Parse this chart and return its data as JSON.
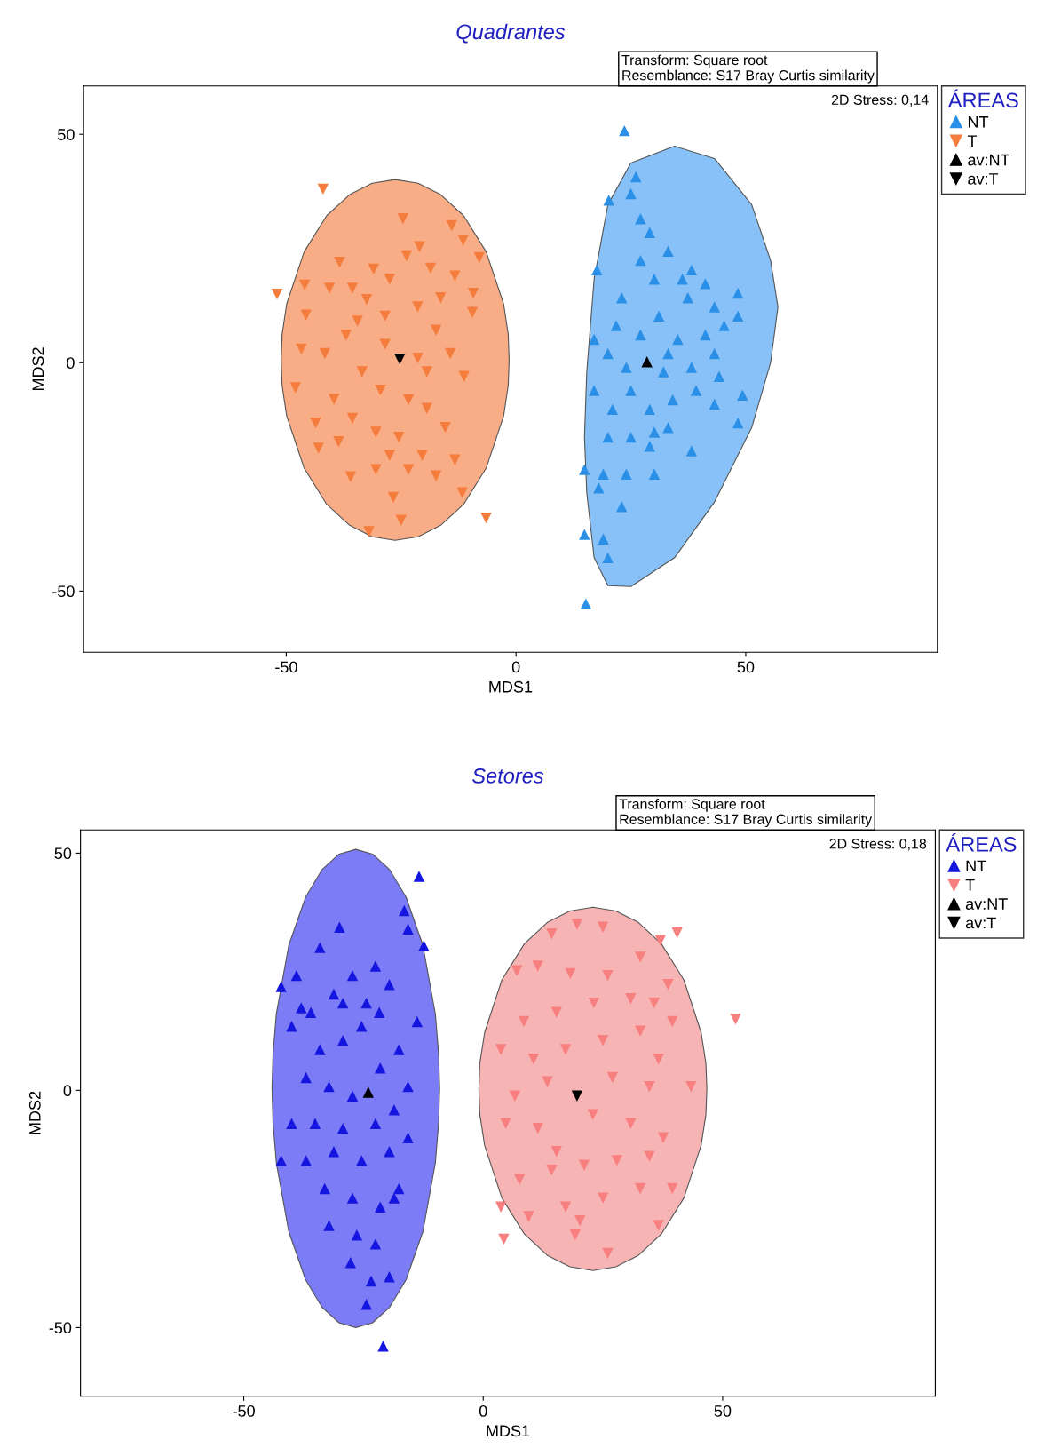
{
  "chart_data": [
    {
      "type": "scatter",
      "title": "Quadrantes",
      "xlabel": "MDS1",
      "ylabel": "MDS2",
      "legend_title": "ÁREAS",
      "legend": "right",
      "grid": false,
      "annotations": [
        "Transform: Square root\nResemblance: S17 Bray Curtis similarity",
        "2D Stress: 0,14"
      ],
      "xlim": [
        -94.1,
        91.7
      ],
      "ylim": [
        -63.4,
        60.6
      ],
      "xticks": [
        -50,
        0,
        50
      ],
      "yticks": [
        -50,
        0,
        50
      ],
      "series": [
        {
          "type": "area",
          "color": "#f9ad86",
          "values": [
            null,
            null,
            null,
            null,
            null,
            null,
            null,
            null,
            null,
            null,
            null,
            null,
            null,
            null,
            null
          ],
          "x": [
            -51.1,
            -50.9,
            -49.9,
            -46.1,
            -41.2,
            -36.2,
            -31.3,
            -26.3,
            -21.3,
            -16.4,
            -11.4,
            -6.5,
            -2.7,
            -1.7,
            -1.5
          ],
          "lower": [
            0.6,
            -5,
            -11.7,
            -23.1,
            -31.0,
            -35.6,
            -38.1,
            -38.9,
            -38.1,
            -35.6,
            -31.0,
            -23.1,
            -11.7,
            -5,
            0.6
          ],
          "upper": [
            0.6,
            6.2,
            12.9,
            24.3,
            32.2,
            36.8,
            39.3,
            40.1,
            39.3,
            36.8,
            32.2,
            24.3,
            12.9,
            6.2,
            0.6
          ]
        },
        {
          "type": "area",
          "color": "#87c1f7",
          "values": [
            null,
            null,
            null,
            null,
            null,
            null,
            null,
            null,
            null,
            null
          ],
          "x": [
            14.9,
            15.4,
            17,
            20,
            25,
            34.5,
            43.2,
            51.3,
            55.4,
            57
          ],
          "lower": [
            -16.3,
            -28.5,
            -42.7,
            -48.8,
            -49,
            -42.7,
            -30.5,
            -14.2,
            0,
            12.2
          ],
          "upper": [
            -16.3,
            -2,
            18.3,
            34.6,
            43.7,
            47.4,
            44.7,
            34.6,
            22.4,
            12.2
          ]
        },
        {
          "name": "NT",
          "marker": "triangle",
          "color": "#2a8fe6",
          "x": [
            23.6,
            15.2,
            20.2,
            26.1,
            25,
            17.6,
            27.1,
            29.1,
            33.1,
            38.2,
            30.1,
            37.4,
            43.2,
            48.3,
            48.3,
            45.3,
            41.2,
            35.2,
            31.1,
            23,
            21.8,
            27.1,
            20,
            32.1,
            38.2,
            44.2,
            49.3,
            48.3,
            43.2,
            38.2,
            33.1,
            29.1,
            25,
            21,
            17,
            20,
            25,
            30.1,
            14.9,
            19,
            24,
            30.1,
            23,
            18,
            14.9,
            19,
            20,
            29.1,
            34.1,
            39.2,
            36.2,
            41.2,
            24,
            17,
            27.1,
            33.1,
            43.2
          ],
          "values": [
            50.8,
            -52.8,
            35.6,
            40.7,
            37,
            20.3,
            31.5,
            28.5,
            24.4,
            20.3,
            18.3,
            14.2,
            12.2,
            15.2,
            10.2,
            8.1,
            6.1,
            5.1,
            10.2,
            14.2,
            8.1,
            6.1,
            2,
            -2,
            -1,
            -3,
            -7.1,
            -13.2,
            -9.1,
            -19.3,
            -14.2,
            -10.2,
            -6.1,
            -10.2,
            -6.1,
            -16.3,
            -16.3,
            -15.2,
            -23.4,
            -24.4,
            -24.4,
            -24.4,
            -31.5,
            -27.4,
            -37.6,
            -38.6,
            -42.7,
            -18.3,
            -8.1,
            -6.1,
            18.3,
            17.3,
            -1,
            5.1,
            22.4,
            2,
            2
          ]
        },
        {
          "name": "T",
          "marker": "triangle_down",
          "color": "#f47c3c",
          "x": [
            -42,
            -52,
            -24.6,
            -14,
            -8,
            -9.5,
            -6.5,
            -32,
            -25,
            -26.7,
            -36,
            -43,
            -48,
            -45.7,
            -46,
            -38.4,
            -31,
            -21,
            -18.6,
            -13.3,
            -11.5,
            -41.6,
            -37,
            -32.5,
            -28.5,
            -21.4,
            -17.4,
            -14.3,
            -11.3,
            -21.4,
            -33.5,
            -29.5,
            -23.4,
            -19.4,
            -15.4,
            -39.6,
            -35.6,
            -30.5,
            -25.5,
            -20.4,
            -17.4,
            -23.4,
            -13.3,
            -11.7,
            -43.6,
            -38.6,
            -27.5,
            -30.5,
            -46.7,
            -40.6,
            -35.6,
            -27.5,
            -23.8,
            -16.4,
            -9.3,
            -19.4,
            -28.5,
            -34.5
          ],
          "values": [
            38,
            15,
            31.5,
            30,
            23,
            11,
            -34,
            -37,
            -34.5,
            -29.5,
            -25,
            -18.7,
            -5.5,
            10.4,
            17,
            22,
            20.5,
            25.4,
            20.7,
            19,
            26.8,
            2,
            6,
            13.8,
            10.2,
            12.2,
            7.1,
            2,
            -3,
            1,
            -2,
            -6,
            -8.1,
            -10,
            -14.2,
            -8,
            -12.2,
            -15.2,
            -16.3,
            -20.3,
            -24.8,
            -23.4,
            -21.3,
            -28.5,
            -13.2,
            -17.3,
            -20.3,
            -23.4,
            3,
            16.3,
            16.3,
            18.3,
            23.4,
            14.2,
            15.2,
            -2,
            4,
            9.1
          ]
        },
        {
          "name": "av:NT",
          "marker": "triangle",
          "color": "#000000",
          "x": [
            28.5
          ],
          "values": [
            0.2
          ]
        },
        {
          "name": "av:T",
          "marker": "triangle_down",
          "color": "#000000",
          "x": [
            -25.3
          ],
          "values": [
            0.8
          ]
        }
      ]
    },
    {
      "type": "scatter",
      "title": "Setores",
      "xlabel": "MDS1",
      "ylabel": "MDS2",
      "legend_title": "ÁREAS",
      "legend": "right",
      "grid": false,
      "annotations": [
        "Transform: Square root\nResemblance: S17 Bray Curtis similarity",
        "2D Stress: 0,18"
      ],
      "xlim": [
        -84.1,
        94.4
      ],
      "ylim": [
        -64.5,
        54.9
      ],
      "xticks": [
        -50,
        0,
        50
      ],
      "yticks": [
        -50,
        0,
        50
      ],
      "series": [
        {
          "type": "area",
          "color": "#7c7cf7",
          "values": [
            null,
            null,
            null,
            null,
            null,
            null,
            null,
            null,
            null,
            null,
            null,
            null,
            null,
            null,
            null
          ],
          "x": [
            -44.1,
            -43.9,
            -43.2,
            -40.6,
            -37.1,
            -33.6,
            -30.1,
            -26.6,
            -23.1,
            -19.6,
            -16.1,
            -12.6,
            -10.0,
            -9.3,
            -9.1
          ],
          "lower": [
            0.4,
            -6.7,
            -15.3,
            -29.8,
            -39.9,
            -45.8,
            -49.0,
            -50.0,
            -49.0,
            -45.8,
            -39.9,
            -29.8,
            -15.3,
            -6.7,
            0.4
          ],
          "upper": [
            0.4,
            7.5,
            16.1,
            30.6,
            40.7,
            46.6,
            49.8,
            50.8,
            49.8,
            46.6,
            40.7,
            30.6,
            16.1,
            7.5,
            0.4
          ]
        },
        {
          "type": "area",
          "color": "#f7b4b4",
          "values": [
            null,
            null,
            null,
            null,
            null,
            null,
            null,
            null,
            null,
            null,
            null,
            null,
            null,
            null,
            null
          ],
          "x": [
            -0.9,
            -0.7,
            0.3,
            3.9,
            8.6,
            13.4,
            18.1,
            22.9,
            27.7,
            32.4,
            37.2,
            41.9,
            45.5,
            46.5,
            46.7
          ],
          "lower": [
            0.3,
            -5.1,
            -11.6,
            -22.7,
            -30.3,
            -34.8,
            -37.2,
            -38.0,
            -37.2,
            -34.8,
            -30.3,
            -22.7,
            -11.6,
            -5.1,
            0.3
          ],
          "upper": [
            0.3,
            5.7,
            12.2,
            23.3,
            30.9,
            35.4,
            37.8,
            38.6,
            37.8,
            35.4,
            30.9,
            23.3,
            12.2,
            5.7,
            0.3
          ]
        },
        {
          "name": "NT",
          "marker": "triangle",
          "color": "#1515e0",
          "x": [
            -13.4,
            -20.9,
            -12.4,
            -42.2,
            -16.5,
            -15.7,
            -30,
            -34.1,
            -39,
            -40,
            -36,
            -31.2,
            -27.3,
            -22.5,
            -19.6,
            -21.7,
            -25.4,
            -29.3,
            -34.1,
            -37,
            -32.2,
            -27.3,
            -21.5,
            -17.6,
            -15.7,
            -18.6,
            -22.5,
            -29.3,
            -35.1,
            -40,
            -42.2,
            -37,
            -31.2,
            -25.4,
            -19.6,
            -15.7,
            -17.6,
            -21.5,
            -27.3,
            -32.2,
            -26.4,
            -22.5,
            -27.7,
            -23.4,
            -19.6,
            -24.4,
            -33.1,
            -18.6,
            -13.8,
            -24.4,
            -29.3,
            -38
          ],
          "values": [
            45.1,
            -53.9,
            30.5,
            21.9,
            37.9,
            34,
            34.4,
            30.1,
            24.2,
            13.5,
            16.4,
            20.3,
            24.2,
            26.2,
            22.3,
            16.4,
            13.5,
            10.5,
            8.6,
            2.7,
            0.8,
            -1.2,
            4.7,
            8.6,
            0.8,
            -4.1,
            -7,
            -8,
            -7,
            -7,
            -14.8,
            -14.8,
            -12.9,
            -14.8,
            -12.9,
            -10,
            -20.7,
            -24.6,
            -22.7,
            -28.5,
            -30.5,
            -32.4,
            -36.3,
            -40.2,
            -39.3,
            -45.1,
            -20.7,
            -22.7,
            14.5,
            18.4,
            18.4,
            17.4
          ]
        },
        {
          "name": "T",
          "marker": "triangle_down",
          "color": "#f77f7f",
          "x": [
            52.7,
            40.5,
            4.3,
            19.6,
            25,
            14.3,
            37,
            7,
            11.4,
            18.2,
            26,
            32.8,
            38.6,
            35.7,
            30.8,
            23.1,
            15.3,
            8.5,
            3.7,
            10.5,
            17.2,
            25,
            32.8,
            39.5,
            36.6,
            43.4,
            34.7,
            27,
            13.4,
            6.6,
            4.7,
            11.4,
            22.9,
            30.8,
            37.6,
            34.7,
            27.9,
            21.1,
            14.3,
            7.6,
            3.7,
            9.5,
            17.2,
            25,
            32.8,
            36.6,
            19.2,
            26,
            20.2,
            15.3,
            39.5
          ],
          "values": [
            15,
            33.2,
            -31.4,
            35,
            34.4,
            33,
            31.6,
            25.2,
            26.2,
            24.6,
            24.2,
            28.1,
            22.3,
            18.4,
            19.3,
            18.4,
            16.4,
            14.5,
            8.6,
            6.6,
            8.6,
            10.5,
            12.5,
            14.5,
            6.6,
            0.8,
            0.8,
            2.7,
            1.8,
            -1.2,
            -7,
            -8,
            -5.1,
            -7,
            -10,
            -13.9,
            -14.8,
            -15.8,
            -16.8,
            -18.8,
            -24.6,
            -26.6,
            -24.6,
            -22.7,
            -20.7,
            -28.5,
            -30.5,
            -34.4,
            -27.5,
            -12.9,
            -20.7
          ]
        },
        {
          "name": "av:NT",
          "marker": "triangle",
          "color": "#000000",
          "x": [
            -24
          ],
          "values": [
            -0.4
          ]
        },
        {
          "name": "av:T",
          "marker": "triangle_down",
          "color": "#000000",
          "x": [
            19.6
          ],
          "values": [
            -1.2
          ]
        }
      ]
    }
  ]
}
